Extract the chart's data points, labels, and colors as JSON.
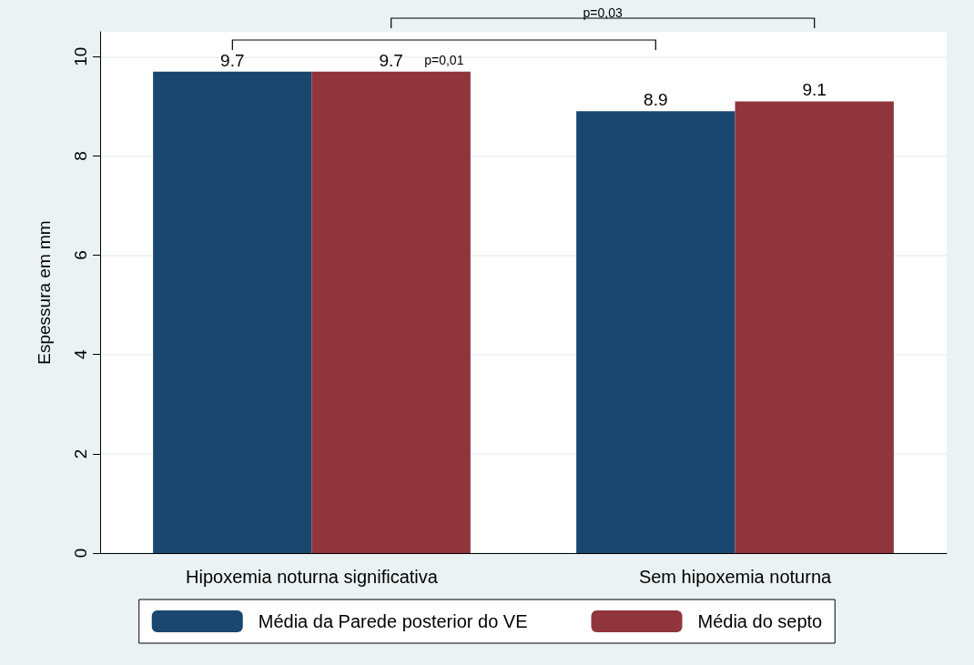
{
  "chart_data": {
    "type": "bar",
    "ylabel": "Espessura em mm",
    "categories": [
      "Hipoxemia noturna significativa",
      "Sem hipoxemia noturna"
    ],
    "series": [
      {
        "name": "Média da Parede posterior do VE",
        "color": "#1a476f",
        "values": [
          9.7,
          8.9
        ]
      },
      {
        "name": "Média do septo",
        "color": "#90353b",
        "values": [
          9.7,
          9.1
        ]
      }
    ],
    "ylim": [
      0,
      10.5
    ],
    "yticks": [
      0,
      2,
      4,
      6,
      8,
      10
    ],
    "grid": "y",
    "legend": "bottom",
    "data_labels": true,
    "annotations": [
      "p=0,01",
      "p=0,03"
    ]
  }
}
